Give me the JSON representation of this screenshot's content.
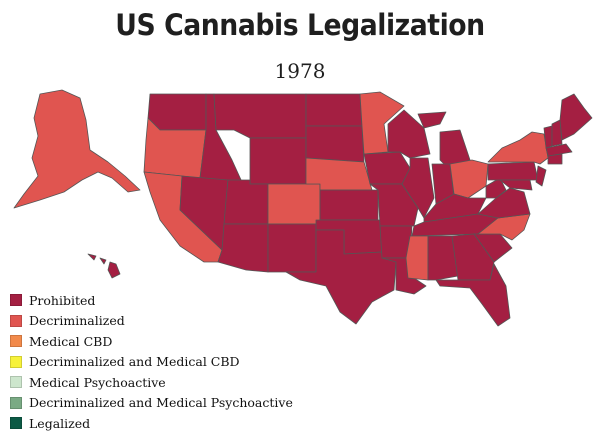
{
  "title": "US Cannabis Legalization",
  "year": "1978",
  "colors": {
    "prohibited": "#a41f42",
    "decriminalized": "#e05550"
  },
  "legend": [
    {
      "label": "Prohibited",
      "color": "#a41f42"
    },
    {
      "label": "Decriminalized",
      "color": "#e05550"
    },
    {
      "label": "Medical CBD",
      "color": "#f28a4b"
    },
    {
      "label": "Decriminalized and Medical CBD",
      "color": "#f7f23a"
    },
    {
      "label": "Medical Psychoactive",
      "color": "#cde6cd"
    },
    {
      "label": "Decriminalized and Medical Psychoactive",
      "color": "#7aaa84"
    },
    {
      "label": "Legalized",
      "color": "#0c5a45"
    }
  ],
  "decriminalized_states": [
    "Alaska",
    "Oregon",
    "California",
    "Colorado",
    "Nebraska",
    "Minnesota",
    "Mississippi",
    "Ohio",
    "New York",
    "North Carolina"
  ]
}
